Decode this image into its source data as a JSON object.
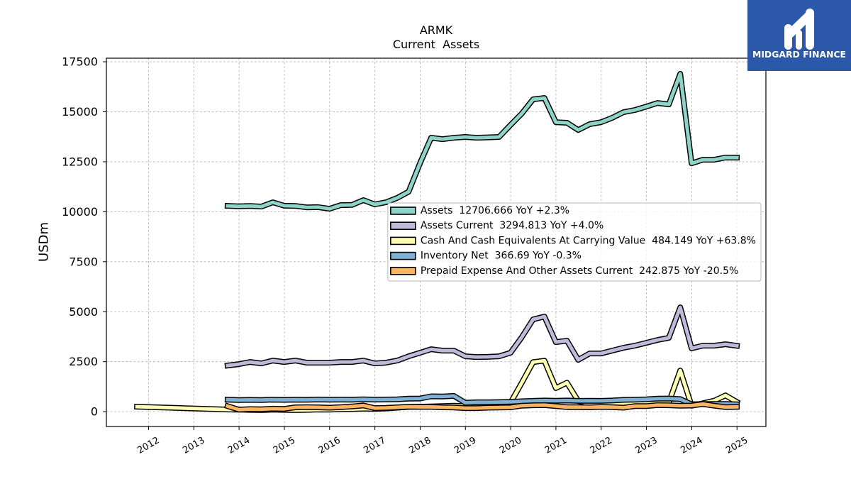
{
  "logo": {
    "text": "MIDGARD FINANCE",
    "background": "#2b58a8"
  },
  "chart_data": {
    "type": "line",
    "title": "ARMK",
    "subtitle": "Current  Assets",
    "xlabel": "",
    "ylabel": "USDm",
    "xlim": [
      "2011-01-26",
      "2025-08-22"
    ],
    "ylim": [
      -740,
      17680
    ],
    "grid": true,
    "legend_position": "center-right",
    "x_ticks": [
      "2012",
      "2013",
      "2014",
      "2015",
      "2016",
      "2017",
      "2018",
      "2019",
      "2020",
      "2021",
      "2022",
      "2023",
      "2024",
      "2025"
    ],
    "y_ticks": [
      0,
      2500,
      5000,
      7500,
      10000,
      12500,
      15000,
      17500
    ],
    "x": [
      "2011-09-30",
      "2012-09-30",
      "2013-09-30",
      "2013-12-31",
      "2014-03-31",
      "2014-06-30",
      "2014-09-30",
      "2014-12-31",
      "2015-03-31",
      "2015-06-30",
      "2015-09-30",
      "2015-12-31",
      "2016-03-31",
      "2016-06-30",
      "2016-09-30",
      "2016-12-31",
      "2017-03-31",
      "2017-06-30",
      "2017-09-30",
      "2017-12-31",
      "2018-03-31",
      "2018-06-30",
      "2018-09-30",
      "2018-12-31",
      "2019-03-31",
      "2019-06-30",
      "2019-09-30",
      "2019-12-31",
      "2020-03-31",
      "2020-06-30",
      "2020-09-30",
      "2020-12-31",
      "2021-03-31",
      "2021-06-30",
      "2021-09-30",
      "2021-12-31",
      "2022-03-31",
      "2022-06-30",
      "2022-09-30",
      "2022-12-31",
      "2023-03-31",
      "2023-06-30",
      "2023-09-30",
      "2023-12-31",
      "2024-03-31",
      "2024-06-30",
      "2024-09-30",
      "2024-12-31"
    ],
    "series": [
      {
        "label": "Assets  12706.666 YoY +2.3%",
        "color": "#8dd3c7",
        "values": [
          null,
          null,
          10295,
          10270,
          10290,
          10260,
          10470,
          10300,
          10290,
          10220,
          10230,
          10150,
          10330,
          10340,
          10580,
          10370,
          10470,
          10690,
          11000,
          12430,
          13700,
          13630,
          13700,
          13740,
          13700,
          13720,
          13740,
          14340,
          14910,
          15620,
          15690,
          14480,
          14450,
          14090,
          14380,
          14480,
          14700,
          14980,
          15090,
          15260,
          15440,
          15370,
          16900,
          12421,
          12600,
          12600,
          12710,
          12706.666
        ]
      },
      {
        "label": "Assets Current  3294.813 YoY +4.0%",
        "color": "#bebada",
        "values": [
          null,
          null,
          2307,
          2380,
          2485,
          2414,
          2556,
          2485,
          2556,
          2450,
          2450,
          2450,
          2485,
          2485,
          2556,
          2414,
          2450,
          2556,
          2770,
          2946,
          3124,
          3053,
          3053,
          2770,
          2733,
          2740,
          2770,
          2946,
          3727,
          4615,
          4757,
          3480,
          3550,
          2591,
          2911,
          2911,
          3053,
          3195,
          3301,
          3443,
          3585,
          3692,
          5218,
          3168,
          3301,
          3301,
          3372,
          3294.813
        ]
      },
      {
        "label": "Cash And Cash Equivalents At Carrying Value  484.149 YoY +63.8%",
        "color": "#ffffb3",
        "values": [
          250,
          180,
          110,
          100,
          90,
          80,
          100,
          90,
          80,
          90,
          110,
          100,
          120,
          130,
          150,
          140,
          160,
          200,
          240,
          250,
          260,
          280,
          300,
          280,
          300,
          320,
          400,
          450,
          1450,
          2480,
          2550,
          1180,
          1450,
          530,
          400,
          380,
          400,
          420,
          450,
          470,
          480,
          460,
          2060,
          296,
          420,
          550,
          816,
          484.149
        ]
      },
      {
        "label": "Inventory Net  366.69 YoY -0.3%",
        "color": "#80b1d3",
        "values": [
          null,
          null,
          600,
          585,
          590,
          585,
          600,
          590,
          600,
          595,
          610,
          600,
          605,
          600,
          620,
          605,
          610,
          615,
          650,
          660,
          770,
          760,
          790,
          450,
          470,
          470,
          480,
          490,
          520,
          540,
          560,
          550,
          560,
          540,
          550,
          540,
          560,
          590,
          600,
          620,
          650,
          660,
          630,
          368,
          380,
          390,
          385,
          366.69
        ]
      },
      {
        "label": "Prepaid Expense And Other Assets Current  242.875 YoY -20.5%",
        "color": "#fdb462",
        "values": [
          null,
          null,
          280,
          100,
          130,
          120,
          150,
          140,
          220,
          230,
          220,
          200,
          230,
          260,
          310,
          180,
          190,
          220,
          250,
          240,
          240,
          220,
          210,
          180,
          180,
          200,
          210,
          220,
          300,
          320,
          330,
          280,
          230,
          230,
          220,
          240,
          230,
          200,
          280,
          280,
          330,
          320,
          300,
          305.5,
          380,
          300,
          230,
          242.875
        ]
      }
    ]
  }
}
